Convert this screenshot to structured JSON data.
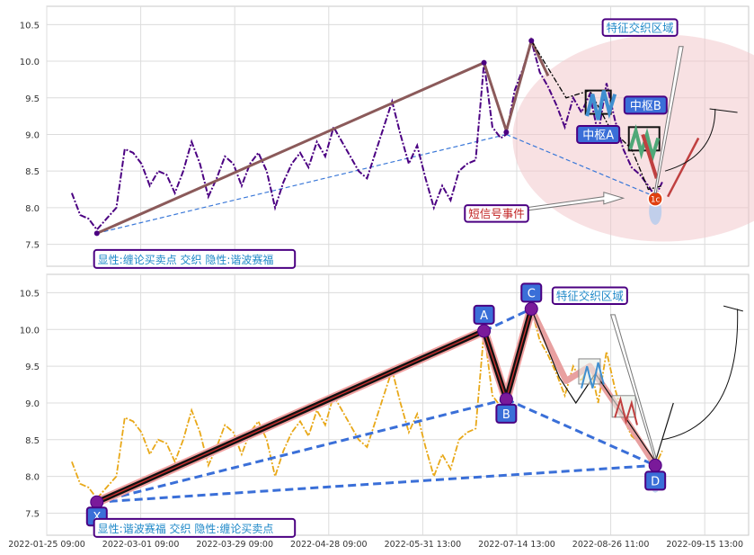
{
  "chart_data": [
    {
      "type": "line",
      "panel": "top",
      "y_ticks": [
        "10.5",
        "10.0",
        "9.5",
        "9.0",
        "8.5",
        "8.0",
        "7.5"
      ],
      "ylim": [
        7.2,
        10.75
      ],
      "grid": true,
      "series": [
        {
          "role": "price",
          "color": "#4b0082",
          "style": "dash-dot",
          "points": [
            [
              0.0,
              8.2
            ],
            [
              0.6,
              7.9
            ],
            [
              1.2,
              7.85
            ],
            [
              1.8,
              7.7
            ],
            [
              2.5,
              7.85
            ],
            [
              3.2,
              8.0
            ],
            [
              3.8,
              8.8
            ],
            [
              4.4,
              8.75
            ],
            [
              5.0,
              8.6
            ],
            [
              5.6,
              8.3
            ],
            [
              6.2,
              8.5
            ],
            [
              6.8,
              8.45
            ],
            [
              7.4,
              8.2
            ],
            [
              8.0,
              8.5
            ],
            [
              8.6,
              8.9
            ],
            [
              9.2,
              8.6
            ],
            [
              9.8,
              8.15
            ],
            [
              10.4,
              8.4
            ],
            [
              11.0,
              8.7
            ],
            [
              11.6,
              8.6
            ],
            [
              12.2,
              8.3
            ],
            [
              12.8,
              8.6
            ],
            [
              13.4,
              8.75
            ],
            [
              14.0,
              8.5
            ],
            [
              14.6,
              8.0
            ],
            [
              15.2,
              8.35
            ],
            [
              15.8,
              8.6
            ],
            [
              16.4,
              8.75
            ],
            [
              17.0,
              8.55
            ],
            [
              17.6,
              8.9
            ],
            [
              18.2,
              8.7
            ],
            [
              18.8,
              9.1
            ],
            [
              19.4,
              8.9
            ],
            [
              20.0,
              8.7
            ],
            [
              20.6,
              8.5
            ],
            [
              21.2,
              8.4
            ],
            [
              21.8,
              8.75
            ],
            [
              22.4,
              9.1
            ],
            [
              23.0,
              9.45
            ],
            [
              23.6,
              9.0
            ],
            [
              24.2,
              8.6
            ],
            [
              24.8,
              8.85
            ],
            [
              25.4,
              8.4
            ],
            [
              26.0,
              8.0
            ],
            [
              26.6,
              8.3
            ],
            [
              27.2,
              8.1
            ],
            [
              27.8,
              8.5
            ],
            [
              28.4,
              8.6
            ],
            [
              29.0,
              8.65
            ],
            [
              29.6,
              9.98
            ],
            [
              30.2,
              9.1
            ],
            [
              30.8,
              8.95
            ],
            [
              31.2,
              9.0
            ],
            [
              31.8,
              9.6
            ],
            [
              32.4,
              9.9
            ],
            [
              33.0,
              10.28
            ],
            [
              33.6,
              9.85
            ],
            [
              34.2,
              9.65
            ],
            [
              34.8,
              9.4
            ],
            [
              35.4,
              9.1
            ],
            [
              36.0,
              9.5
            ],
            [
              36.6,
              9.3
            ],
            [
              37.2,
              9.55
            ],
            [
              37.8,
              9.0
            ],
            [
              38.4,
              9.7
            ],
            [
              39.0,
              9.2
            ],
            [
              39.6,
              8.8
            ],
            [
              40.2,
              8.55
            ],
            [
              40.8,
              8.45
            ],
            [
              41.4,
              8.3
            ],
            [
              41.9,
              8.15
            ],
            [
              42.4,
              8.35
            ]
          ]
        },
        {
          "role": "upper-wave",
          "color": "#8b5a5a",
          "points": [
            [
              1.8,
              7.65
            ],
            [
              29.6,
              9.98
            ],
            [
              31.2,
              9.05
            ],
            [
              33.0,
              10.28
            ],
            [
              34.2,
              9.8
            ]
          ]
        },
        {
          "role": "zigzag",
          "color": "#000000",
          "style": "dash-dot",
          "points": [
            [
              33.0,
              10.28
            ],
            [
              35.5,
              9.5
            ],
            [
              37.2,
              9.6
            ],
            [
              38.6,
              9.1
            ],
            [
              40.2,
              8.8
            ],
            [
              41.4,
              8.25
            ],
            [
              42.4,
              8.3
            ]
          ]
        },
        {
          "role": "rebound",
          "color": "#c04040",
          "points": [
            [
              42.8,
              8.15
            ],
            [
              45.0,
              8.95
            ]
          ]
        }
      ],
      "annotations": [
        {
          "label": "特征交织区域",
          "x": 40.8,
          "y": 10.46,
          "color": "#1e88c8"
        },
        {
          "label": "中枢B",
          "x": 41.2,
          "y": 9.4,
          "color": "#ffffff",
          "fill": "#3a6fd8"
        },
        {
          "label": "中枢A",
          "x": 37.8,
          "y": 9.0,
          "color": "#ffffff",
          "fill": "#3a6fd8"
        },
        {
          "label": "短信号事件",
          "x": 30.5,
          "y": 7.92,
          "color": "#c02020"
        },
        {
          "label": "显性:缠论买卖点 交织 隐性:谐波赛福",
          "x": 1.6,
          "y": 7.3,
          "color": "#1e88c8"
        }
      ]
    },
    {
      "type": "line",
      "panel": "bottom",
      "y_ticks": [
        "10.5",
        "10.0",
        "9.5",
        "9.0",
        "8.5",
        "8.0",
        "7.5"
      ],
      "ylim": [
        7.2,
        10.75
      ],
      "x_tick_labels": [
        "2022-01-25 09:00",
        "2022-03-01 09:00",
        "2022-03-29 09:00",
        "2022-04-28 09:00",
        "2022-05-31 13:00",
        "2022-07-14 13:00",
        "2022-08-26 11:00",
        "2022-09-15 13:00"
      ],
      "grid": true,
      "series": [
        {
          "role": "price",
          "color": "#e8a818",
          "style": "dash-dot",
          "points": [
            [
              0.0,
              8.2
            ],
            [
              0.6,
              7.9
            ],
            [
              1.2,
              7.85
            ],
            [
              1.8,
              7.7
            ],
            [
              2.5,
              7.85
            ],
            [
              3.2,
              8.0
            ],
            [
              3.8,
              8.8
            ],
            [
              4.4,
              8.75
            ],
            [
              5.0,
              8.6
            ],
            [
              5.6,
              8.3
            ],
            [
              6.2,
              8.5
            ],
            [
              6.8,
              8.45
            ],
            [
              7.4,
              8.2
            ],
            [
              8.0,
              8.5
            ],
            [
              8.6,
              8.9
            ],
            [
              9.2,
              8.6
            ],
            [
              9.8,
              8.15
            ],
            [
              10.4,
              8.4
            ],
            [
              11.0,
              8.7
            ],
            [
              11.6,
              8.6
            ],
            [
              12.2,
              8.3
            ],
            [
              12.8,
              8.6
            ],
            [
              13.4,
              8.75
            ],
            [
              14.0,
              8.5
            ],
            [
              14.6,
              8.0
            ],
            [
              15.2,
              8.35
            ],
            [
              15.8,
              8.6
            ],
            [
              16.4,
              8.75
            ],
            [
              17.0,
              8.55
            ],
            [
              17.6,
              8.9
            ],
            [
              18.2,
              8.7
            ],
            [
              18.8,
              9.1
            ],
            [
              19.4,
              8.9
            ],
            [
              20.0,
              8.7
            ],
            [
              20.6,
              8.5
            ],
            [
              21.2,
              8.4
            ],
            [
              21.8,
              8.75
            ],
            [
              22.4,
              9.1
            ],
            [
              23.0,
              9.45
            ],
            [
              23.6,
              9.0
            ],
            [
              24.2,
              8.6
            ],
            [
              24.8,
              8.85
            ],
            [
              25.4,
              8.4
            ],
            [
              26.0,
              8.0
            ],
            [
              26.6,
              8.3
            ],
            [
              27.2,
              8.1
            ],
            [
              27.8,
              8.5
            ],
            [
              28.4,
              8.6
            ],
            [
              29.0,
              8.65
            ],
            [
              29.6,
              9.98
            ],
            [
              30.2,
              9.1
            ],
            [
              30.8,
              8.95
            ],
            [
              31.2,
              9.0
            ],
            [
              31.8,
              9.6
            ],
            [
              32.4,
              9.9
            ],
            [
              33.0,
              10.28
            ],
            [
              33.6,
              9.85
            ],
            [
              34.2,
              9.65
            ],
            [
              34.8,
              9.4
            ],
            [
              35.4,
              9.1
            ],
            [
              36.0,
              9.5
            ],
            [
              36.6,
              9.3
            ],
            [
              37.2,
              9.55
            ],
            [
              37.8,
              9.0
            ],
            [
              38.4,
              9.7
            ],
            [
              39.0,
              9.2
            ],
            [
              39.6,
              8.8
            ],
            [
              40.2,
              8.55
            ],
            [
              40.8,
              8.45
            ],
            [
              41.4,
              8.3
            ],
            [
              41.9,
              8.15
            ],
            [
              42.4,
              8.35
            ]
          ]
        },
        {
          "role": "black-leg",
          "color": "#111111",
          "points": [
            [
              1.8,
              7.65
            ],
            [
              29.6,
              9.98
            ],
            [
              31.2,
              9.05
            ],
            [
              33.0,
              10.28
            ],
            [
              33.8,
              9.8
            ]
          ]
        },
        {
          "role": "pink-leg",
          "color": "#e8a0a0",
          "points": [
            [
              33.0,
              10.28
            ],
            [
              35.5,
              9.3
            ],
            [
              37.2,
              9.5
            ],
            [
              39.0,
              9.0
            ],
            [
              41.9,
              8.15
            ]
          ]
        },
        {
          "role": "black-leg-2",
          "color": "#111111",
          "points": [
            [
              33.0,
              10.28
            ],
            [
              35.0,
              9.35
            ],
            [
              36.2,
              9.0
            ],
            [
              37.6,
              9.4
            ],
            [
              39.4,
              8.9
            ],
            [
              41.9,
              8.2
            ],
            [
              43.2,
              9.0
            ]
          ]
        }
      ],
      "harmonic_points": [
        {
          "label": "X",
          "x": 1.8,
          "y": 7.65
        },
        {
          "label": "A",
          "x": 29.6,
          "y": 9.98
        },
        {
          "label": "B",
          "x": 31.2,
          "y": 9.05
        },
        {
          "label": "C",
          "x": 33.0,
          "y": 10.28
        },
        {
          "label": "D",
          "x": 41.9,
          "y": 8.15
        }
      ],
      "annotations": [
        {
          "label": "特征交织区域",
          "x": 37.2,
          "y": 10.46,
          "color": "#1e88c8"
        },
        {
          "label": "显性:谐波赛福 交织 隐性:缠论买卖点",
          "x": 1.6,
          "y": 7.3,
          "color": "#1e88c8"
        }
      ]
    }
  ]
}
